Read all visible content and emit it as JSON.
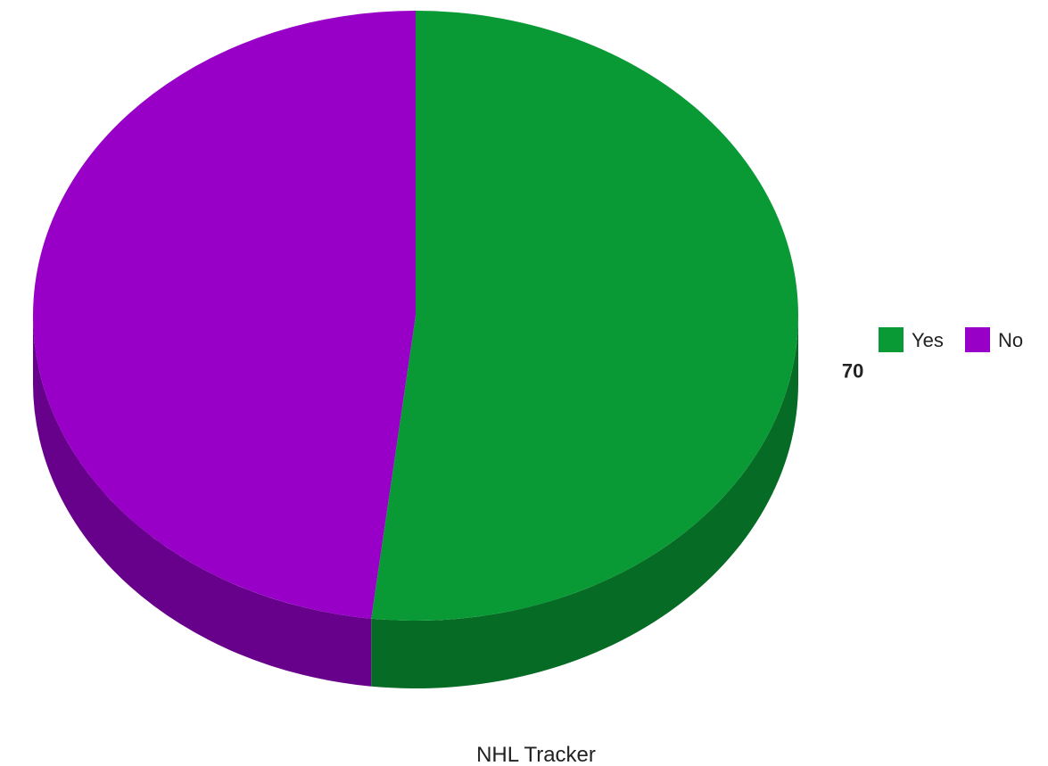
{
  "chart_data": {
    "type": "pie",
    "style": "3d",
    "categories": [
      "Yes",
      "No"
    ],
    "values": [
      70,
      65
    ],
    "colors": [
      "#0a9a35",
      "#9800c8"
    ],
    "side_colors": [
      "#066b24",
      "#67008a"
    ],
    "legend": "right",
    "caption": "NHL Tracker"
  }
}
